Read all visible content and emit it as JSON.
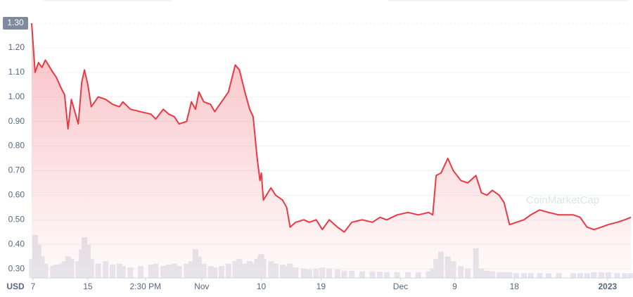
{
  "chart_data": {
    "type": "line",
    "yaxis_label": "USD",
    "watermark": "CoinMarketCap",
    "x": [
      -0.2,
      0.3,
      0.8,
      1.3,
      1.8,
      2.9,
      3.4,
      4.2,
      4.6,
      5.1,
      5.6,
      6.6,
      7.1,
      7.5,
      8.0,
      8.5,
      9.5,
      10.6,
      11.6,
      12.6,
      13.1,
      14.2,
      15.7,
      17.2,
      17.9,
      19.0,
      19.8,
      20.6,
      21.3,
      22.4,
      23.1,
      23.7,
      24.2,
      24.9,
      25.9,
      26.5,
      27.5,
      28.5,
      29.5,
      30.1,
      30.9,
      31.6,
      32.1,
      32.7,
      33.1,
      33.3,
      33.6,
      34.7,
      35.4,
      36.4,
      37.0,
      37.5,
      38.3,
      39.5,
      40.3,
      41.3,
      42.2,
      43.2,
      44.4,
      45.4,
      46.5,
      48.0,
      49.5,
      50.6,
      51.6,
      53.1,
      54.7,
      56.2,
      57.7,
      58.3,
      58.8,
      59.5,
      60.5,
      61.3,
      62.4,
      63.4,
      64.6,
      65.4,
      66.2,
      67.0,
      68.0,
      68.7,
      69.5,
      70.5,
      71.6,
      72.6,
      73.9,
      75.2,
      76.7,
      78.8,
      79.8,
      80.8,
      81.8,
      82.9,
      83.9,
      85.2,
      86.3,
      87.2
    ],
    "series": [
      {
        "name": "Price",
        "color": "#ea3943",
        "axis": "y",
        "values": [
          1.3,
          1.1,
          1.14,
          1.12,
          1.15,
          1.1,
          1.08,
          1.03,
          1.01,
          0.87,
          0.99,
          0.89,
          1.06,
          1.11,
          1.05,
          0.96,
          1.0,
          0.99,
          0.97,
          0.96,
          0.98,
          0.95,
          0.94,
          0.93,
          0.91,
          0.95,
          0.93,
          0.92,
          0.89,
          0.9,
          0.98,
          0.95,
          1.02,
          0.98,
          0.97,
          0.94,
          0.98,
          1.02,
          1.13,
          1.11,
          1.02,
          0.95,
          0.92,
          0.75,
          0.66,
          0.69,
          0.58,
          0.63,
          0.6,
          0.58,
          0.55,
          0.47,
          0.49,
          0.5,
          0.49,
          0.5,
          0.46,
          0.5,
          0.47,
          0.45,
          0.49,
          0.5,
          0.49,
          0.51,
          0.5,
          0.52,
          0.53,
          0.52,
          0.53,
          0.52,
          0.68,
          0.69,
          0.75,
          0.7,
          0.66,
          0.65,
          0.68,
          0.61,
          0.6,
          0.62,
          0.6,
          0.57,
          0.48,
          0.49,
          0.5,
          0.52,
          0.54,
          0.53,
          0.52,
          0.52,
          0.51,
          0.47,
          0.46,
          0.47,
          0.48,
          0.49,
          0.5,
          0.51
        ]
      },
      {
        "name": "Volume",
        "color": "#e6e8ee",
        "axis": "y2",
        "values": [
          40,
          90,
          70,
          45,
          30,
          25,
          28,
          30,
          35,
          45,
          40,
          35,
          60,
          85,
          70,
          40,
          30,
          35,
          28,
          30,
          25,
          22,
          25,
          28,
          30,
          25,
          28,
          30,
          25,
          30,
          35,
          60,
          45,
          30,
          25,
          22,
          25,
          30,
          35,
          40,
          30,
          35,
          30,
          40,
          45,
          50,
          40,
          35,
          30,
          28,
          25,
          30,
          22,
          20,
          18,
          20,
          22,
          20,
          18,
          15,
          15,
          14,
          14,
          13,
          12,
          12,
          12,
          12,
          14,
          20,
          40,
          55,
          45,
          35,
          25,
          20,
          62,
          20,
          15,
          14,
          12,
          12,
          12,
          10,
          10,
          10,
          10,
          10,
          10,
          10,
          10,
          10,
          12,
          12,
          12,
          10,
          10,
          10
        ]
      }
    ],
    "xlim": [
      -0.2,
      87.2
    ],
    "xticks": [
      {
        "value": 0,
        "label": "7"
      },
      {
        "value": 8,
        "label": "15"
      },
      {
        "value": 16.4,
        "label": "2:30 PM"
      },
      {
        "value": 24.6,
        "label": "Nov"
      },
      {
        "value": 33.3,
        "label": "10"
      },
      {
        "value": 42,
        "label": "19"
      },
      {
        "value": 53.6,
        "label": "Dec"
      },
      {
        "value": 61.5,
        "label": "9"
      },
      {
        "value": 70.2,
        "label": "18"
      },
      {
        "value": 83.8,
        "label": "2023"
      }
    ],
    "ylim": [
      0.263,
      1.3
    ],
    "yticks": [
      {
        "value": 0.3,
        "label": "0.30"
      },
      {
        "value": 0.4,
        "label": "0.40"
      },
      {
        "value": 0.5,
        "label": "0.50"
      },
      {
        "value": 0.6,
        "label": "0.60"
      },
      {
        "value": 0.7,
        "label": "0.70"
      },
      {
        "value": 0.8,
        "label": "0.80"
      },
      {
        "value": 0.9,
        "label": "0.90"
      },
      {
        "value": 1.0,
        "label": "1.00"
      },
      {
        "value": 1.1,
        "label": "1.10"
      },
      {
        "value": 1.2,
        "label": "1.20"
      },
      {
        "value": 1.3,
        "label": "1.30"
      }
    ],
    "y2lim": [
      0,
      100
    ],
    "grid": true
  }
}
